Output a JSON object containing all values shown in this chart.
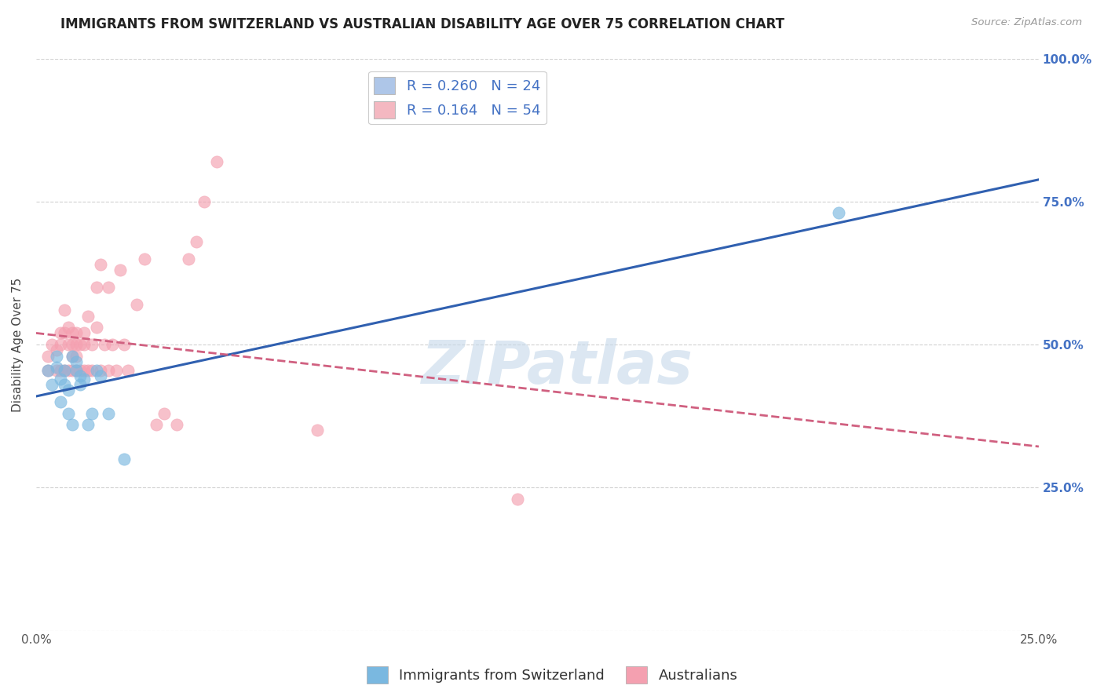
{
  "title": "IMMIGRANTS FROM SWITZERLAND VS AUSTRALIAN DISABILITY AGE OVER 75 CORRELATION CHART",
  "source_text": "Source: ZipAtlas.com",
  "ylabel": "Disability Age Over 75",
  "xlim": [
    0.0,
    0.25
  ],
  "ylim": [
    0.0,
    1.0
  ],
  "x_ticks": [
    0.0,
    0.05,
    0.1,
    0.15,
    0.2,
    0.25
  ],
  "x_tick_labels": [
    "0.0%",
    "",
    "",
    "",
    "",
    "25.0%"
  ],
  "y_ticks": [
    0.0,
    0.25,
    0.5,
    0.75,
    1.0
  ],
  "y_tick_labels_right": [
    "",
    "25.0%",
    "50.0%",
    "75.0%",
    "100.0%"
  ],
  "legend_entries": [
    {
      "label": "R = 0.260   N = 24",
      "color": "#aec6e8"
    },
    {
      "label": "R = 0.164   N = 54",
      "color": "#f4b8c1"
    }
  ],
  "series1_color": "#7ab8e0",
  "series2_color": "#f4a0b0",
  "trend1_color": "#3060b0",
  "trend2_color": "#d06080",
  "background_color": "#ffffff",
  "grid_color": "#cccccc",
  "swiss_x": [
    0.003,
    0.004,
    0.005,
    0.005,
    0.006,
    0.006,
    0.007,
    0.007,
    0.008,
    0.008,
    0.009,
    0.009,
    0.01,
    0.01,
    0.011,
    0.011,
    0.012,
    0.013,
    0.014,
    0.015,
    0.016,
    0.018,
    0.022,
    0.2
  ],
  "swiss_y": [
    0.455,
    0.43,
    0.46,
    0.48,
    0.44,
    0.4,
    0.455,
    0.43,
    0.42,
    0.38,
    0.48,
    0.36,
    0.455,
    0.47,
    0.445,
    0.43,
    0.44,
    0.36,
    0.38,
    0.455,
    0.445,
    0.38,
    0.3,
    0.73
  ],
  "aus_x": [
    0.003,
    0.003,
    0.004,
    0.005,
    0.005,
    0.006,
    0.006,
    0.006,
    0.007,
    0.007,
    0.007,
    0.008,
    0.008,
    0.008,
    0.009,
    0.009,
    0.009,
    0.009,
    0.01,
    0.01,
    0.01,
    0.01,
    0.011,
    0.011,
    0.012,
    0.012,
    0.012,
    0.013,
    0.013,
    0.014,
    0.014,
    0.015,
    0.015,
    0.016,
    0.016,
    0.017,
    0.018,
    0.018,
    0.019,
    0.02,
    0.021,
    0.022,
    0.023,
    0.025,
    0.027,
    0.03,
    0.032,
    0.035,
    0.038,
    0.04,
    0.042,
    0.045,
    0.07,
    0.12
  ],
  "aus_y": [
    0.48,
    0.455,
    0.5,
    0.49,
    0.455,
    0.52,
    0.5,
    0.455,
    0.56,
    0.52,
    0.455,
    0.53,
    0.5,
    0.455,
    0.52,
    0.5,
    0.48,
    0.455,
    0.52,
    0.5,
    0.48,
    0.455,
    0.5,
    0.455,
    0.52,
    0.5,
    0.455,
    0.55,
    0.455,
    0.5,
    0.455,
    0.53,
    0.6,
    0.455,
    0.64,
    0.5,
    0.455,
    0.6,
    0.5,
    0.455,
    0.63,
    0.5,
    0.455,
    0.57,
    0.65,
    0.36,
    0.38,
    0.36,
    0.65,
    0.68,
    0.75,
    0.82,
    0.35,
    0.23
  ],
  "title_fontsize": 12,
  "axis_label_fontsize": 11,
  "tick_fontsize": 11,
  "legend_fontsize": 13,
  "marker_size": 11,
  "watermark_text": "ZIPatlas",
  "watermark_color": "#c5d8ea",
  "watermark_fontsize": 55
}
